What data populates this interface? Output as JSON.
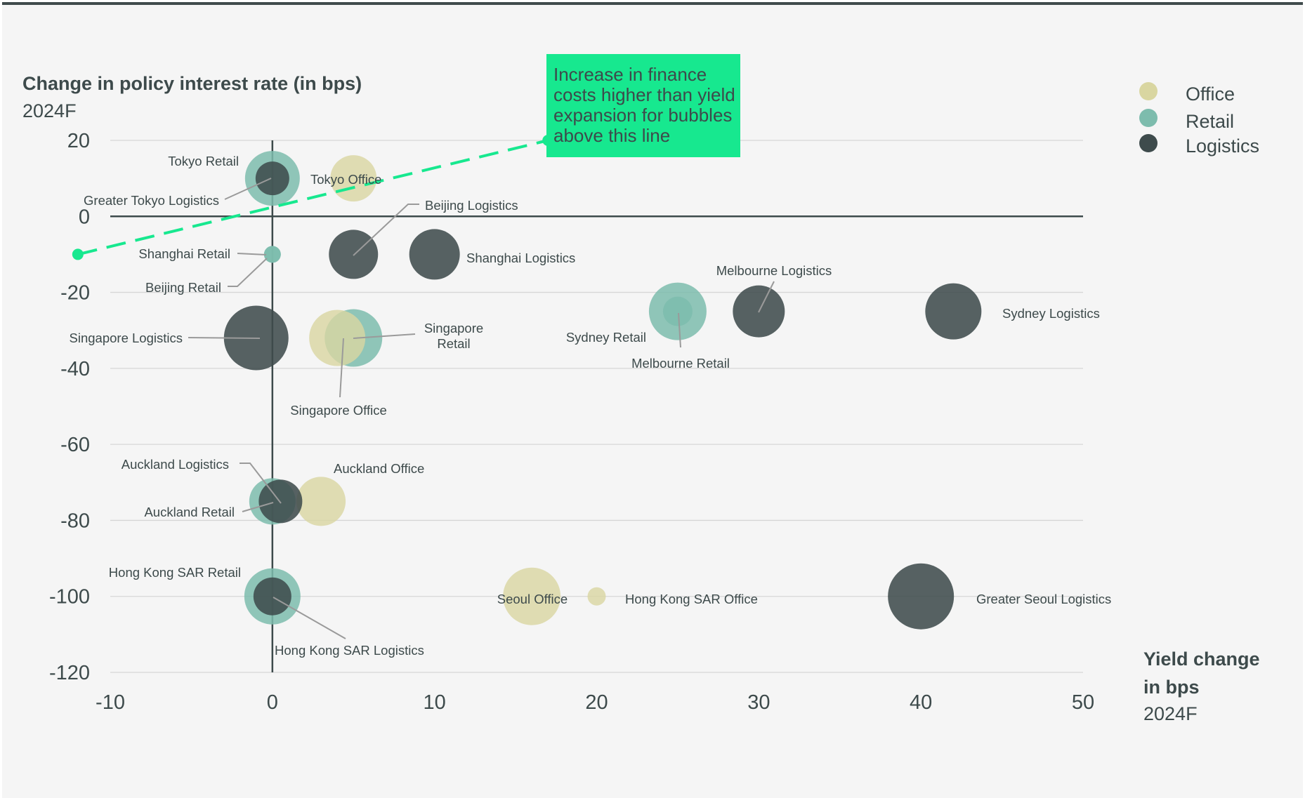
{
  "colors": {
    "Office": "#d9d6a1",
    "Retail": "#7dbcad",
    "Logistics": "#3e4b4c",
    "accent": "#17e88f",
    "background": "#f5f5f5",
    "grid": "#d6d6d6",
    "axis": "#3d4a4b",
    "frame_top": "#404b4c",
    "connector": "#9a9a9a"
  },
  "chart_data": {
    "type": "scatter",
    "subtype": "bubble",
    "ylabel": "Change in policy interest rate (in bps)",
    "ylabel_sub": "2024F",
    "xlabel": "Yield change in bps",
    "xlabel_line1": "Yield change",
    "xlabel_line2": "in bps",
    "xlabel_sub": "2024F",
    "xlim": [
      -10,
      50
    ],
    "ylim": [
      -120,
      20
    ],
    "xticks": [
      -10,
      0,
      10,
      20,
      30,
      40,
      50
    ],
    "yticks": [
      20,
      0,
      -20,
      -40,
      -60,
      -80,
      -100,
      -120
    ],
    "grid": true,
    "legend": {
      "position": "top-right",
      "entries": [
        "Office",
        "Retail",
        "Logistics"
      ]
    },
    "annotation": {
      "lines": [
        "Increase in finance",
        "costs higher than yield",
        "expansion for bubbles",
        "above this line"
      ],
      "line_from": [
        -12,
        -10
      ],
      "line_to": [
        17,
        20
      ]
    },
    "series": [
      {
        "name": "Office",
        "points": [
          {
            "label": "Tokyo Office",
            "x": 5,
            "y": 10,
            "size": 33
          },
          {
            "label": "Singapore Office",
            "x": 4,
            "y": -32,
            "size": 40
          },
          {
            "label": "Auckland Office",
            "x": 3,
            "y": -75,
            "size": 35
          },
          {
            "label": "Seoul Office",
            "x": 16,
            "y": -100,
            "size": 41
          },
          {
            "label": "Hong Kong SAR Office",
            "x": 20,
            "y": -100,
            "size": 13
          }
        ]
      },
      {
        "name": "Retail",
        "points": [
          {
            "label": "Tokyo Retail",
            "x": 0,
            "y": 10,
            "size": 39
          },
          {
            "label": "Shanghai Retail",
            "x": 0,
            "y": -10,
            "size": 12
          },
          {
            "label": "Beijing Retail",
            "x": 0,
            "y": -10,
            "size": 12
          },
          {
            "label": "Singapore Retail",
            "x": 5,
            "y": -32,
            "size": 41
          },
          {
            "label": "Sydney Retail",
            "x": 25,
            "y": -25,
            "size": 41
          },
          {
            "label": "Melbourne Retail",
            "x": 25,
            "y": -25,
            "size": 21
          },
          {
            "label": "Auckland Retail",
            "x": 0,
            "y": -75,
            "size": 33
          },
          {
            "label": "Hong Kong SAR Retail",
            "x": 0,
            "y": -100,
            "size": 40
          }
        ]
      },
      {
        "name": "Logistics",
        "points": [
          {
            "label": "Greater Tokyo Logistics",
            "x": 0,
            "y": 10,
            "size": 24
          },
          {
            "label": "Beijing Logistics",
            "x": 5,
            "y": -10,
            "size": 35
          },
          {
            "label": "Shanghai Logistics",
            "x": 10,
            "y": -10,
            "size": 36
          },
          {
            "label": "Singapore Logistics",
            "x": -1,
            "y": -32,
            "size": 46
          },
          {
            "label": "Melbourne Logistics",
            "x": 30,
            "y": -25,
            "size": 37
          },
          {
            "label": "Sydney Logistics",
            "x": 42,
            "y": -25,
            "size": 40
          },
          {
            "label": "Auckland Logistics",
            "x": 0.5,
            "y": -75,
            "size": 31
          },
          {
            "label": "Hong Kong SAR Logistics",
            "x": 0,
            "y": -100,
            "size": 27
          },
          {
            "label": "Greater Seoul Logistics",
            "x": 40,
            "y": -100,
            "size": 47
          }
        ]
      }
    ]
  }
}
